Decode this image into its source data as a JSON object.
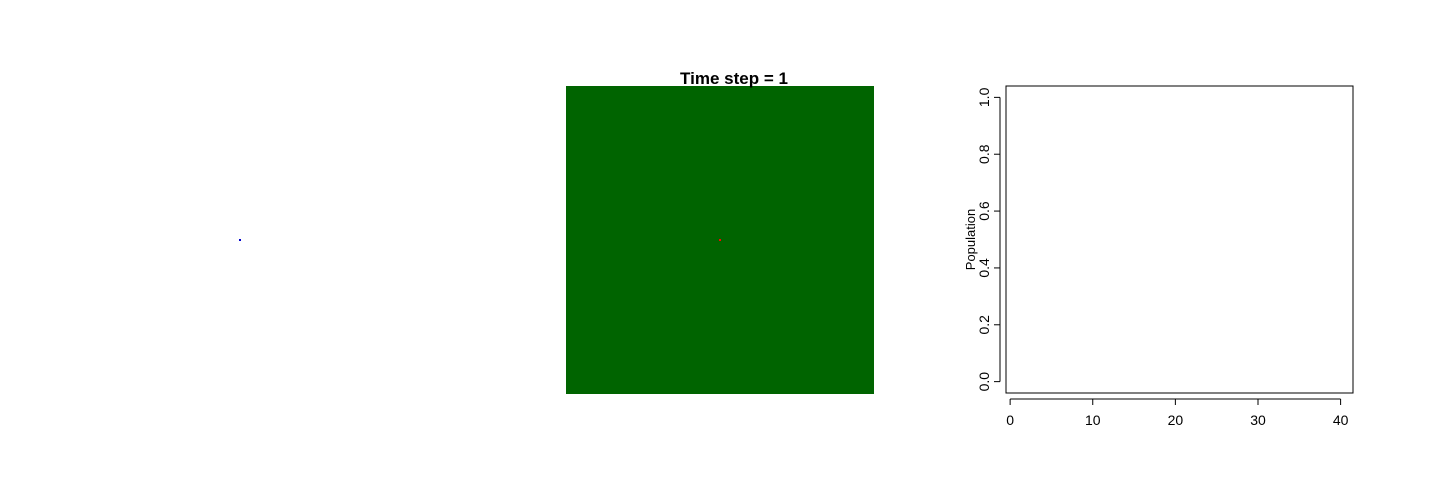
{
  "chart_data": [
    {
      "type": "scatter",
      "title": "",
      "points": [
        {
          "x": 0.5,
          "y": 0.5,
          "color": "#0000cc"
        }
      ]
    },
    {
      "type": "heatmap",
      "title": "Time step = 1",
      "background_color": "#006400",
      "cells": [
        {
          "x": 0.5,
          "y": 0.5,
          "color": "#ff0000"
        }
      ]
    },
    {
      "type": "line",
      "title": "",
      "xlabel": "",
      "ylabel": "Population",
      "xlim": [
        -0.5,
        41.5
      ],
      "ylim": [
        -0.04,
        1.04
      ],
      "x_ticks": [
        "0",
        "10",
        "20",
        "30",
        "40"
      ],
      "y_ticks": [
        "0.0",
        "0.2",
        "0.4",
        "0.6",
        "0.8",
        "1.0"
      ],
      "series": []
    }
  ]
}
